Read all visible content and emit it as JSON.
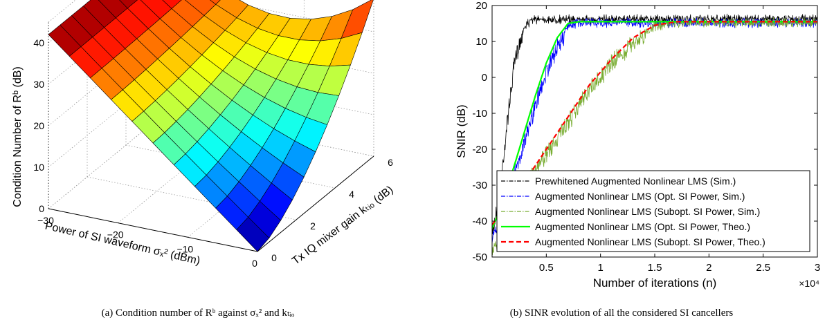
{
  "captions": {
    "a": "(a) Condition number of Rᵇ against σₓ² and kₜᵢₒ",
    "b": "(b) SINR evolution of all the considered SI cancellers"
  },
  "colors": {
    "prewhitened_sim": "#000000",
    "aug_opt_sim": "#0000ff",
    "aug_subopt_sim": "#77ac30",
    "aug_opt_theo": "#00ff00",
    "aug_subopt_theo": "#ff0000"
  },
  "chart_data": [
    {
      "type": "surface",
      "title": "",
      "xlabel": "Power of SI waveform σₓ² (dBm)",
      "ylabel": "Tx IQ mixer gain kₜᵢₒ (dB)",
      "zlabel": "Condition Number of Rᵇ (dB)",
      "xlim": [
        -30,
        0
      ],
      "ylim": [
        0,
        6
      ],
      "zlim": [
        0,
        45
      ],
      "xticks": [
        "−30",
        "−20",
        "−10",
        "0"
      ],
      "yticks": [
        "0",
        "2",
        "4",
        "6"
      ],
      "zticks": [
        "0",
        "10",
        "20",
        "30",
        "40"
      ],
      "colormap": "jet",
      "grid": true,
      "x": [
        -30,
        -27,
        -24,
        -21,
        -18,
        -15,
        -12,
        -9,
        -6,
        -3,
        0
      ],
      "y": [
        0,
        0.6,
        1.2,
        1.8,
        2.4,
        3.0,
        3.6,
        4.2,
        4.8,
        5.4,
        6.0
      ],
      "z_corners": {
        "x_-30_y_0": 42,
        "x_-30_y_6": 43,
        "x_0_y_0": 0,
        "x_0_y_6": 38
      }
    },
    {
      "type": "line",
      "title": "",
      "xlabel": "Number of iterations (n)",
      "ylabel": "SNIR (dB)",
      "x_multiplier": "×10⁴",
      "xlim": [
        0,
        3
      ],
      "ylim": [
        -50,
        20
      ],
      "xticks": [
        "0.5",
        "1",
        "1.5",
        "2",
        "2.5",
        "3"
      ],
      "yticks": [
        "-50",
        "-40",
        "-30",
        "-20",
        "-10",
        "0",
        "10",
        "20"
      ],
      "grid": false,
      "legend_position": "bottom-right",
      "series": [
        {
          "name": "Prewhitened Augmented Nonlinear LMS (Sim.)",
          "style": "dash-dot",
          "color_key": "prewhitened_sim",
          "x": [
            0,
            0.05,
            0.1,
            0.15,
            0.2,
            0.25,
            0.3,
            0.35,
            0.4,
            3.0
          ],
          "y": [
            -42,
            -34,
            -22,
            -8,
            4,
            11,
            14.5,
            16,
            16.5,
            16.5
          ]
        },
        {
          "name": "Augmented Nonlinear LMS (Opt. SI Power, Sim.)",
          "style": "dash-dot",
          "color_key": "aug_opt_sim",
          "x": [
            0,
            0.1,
            0.2,
            0.3,
            0.4,
            0.5,
            0.6,
            0.7,
            0.8,
            3.0
          ],
          "y": [
            -44,
            -36,
            -26,
            -16,
            -6,
            3,
            10,
            14.5,
            15.5,
            15.5
          ]
        },
        {
          "name": "Augmented Nonlinear LMS (Subopt. SI Power, Sim.)",
          "style": "dash-dot",
          "color_key": "aug_subopt_sim",
          "x": [
            0,
            0.3,
            0.5,
            0.7,
            0.9,
            1.1,
            1.3,
            1.5,
            1.7,
            3.0
          ],
          "y": [
            -48,
            -28,
            -20,
            -11,
            -2,
            5.5,
            11,
            14.5,
            15.5,
            15.5
          ]
        },
        {
          "name": "Augmented Nonlinear LMS (Opt. SI Power, Theo.)",
          "style": "solid",
          "color_key": "aug_opt_theo",
          "x": [
            0,
            0.1,
            0.2,
            0.3,
            0.4,
            0.5,
            0.6,
            0.7,
            0.8,
            3.0
          ],
          "y": [
            -42,
            -35,
            -25,
            -15,
            -5,
            4,
            11,
            15,
            15.5,
            15.5
          ]
        },
        {
          "name": "Augmented Nonlinear LMS (Subopt. SI Power, Theo.)",
          "style": "dashed",
          "color_key": "aug_subopt_theo",
          "x": [
            0,
            0.3,
            0.5,
            0.7,
            0.9,
            1.1,
            1.3,
            1.5,
            1.7,
            3.0
          ],
          "y": [
            -41,
            -29,
            -20,
            -11,
            -2,
            5,
            11,
            14.5,
            15.5,
            15.5
          ]
        }
      ]
    }
  ]
}
